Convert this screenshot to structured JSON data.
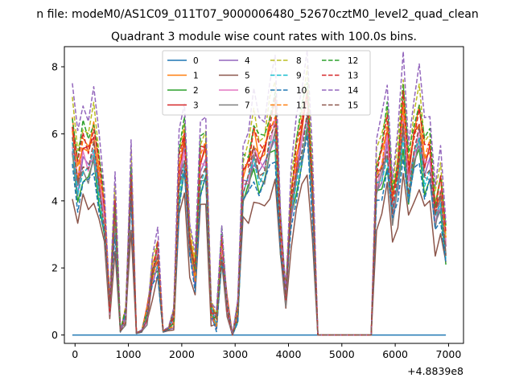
{
  "chart_data": {
    "type": "line",
    "suptitle": "n file: modeM0/AS1C09_011T07_9000006480_52670cztM0_level2_quad_clean",
    "title": "Quadrant 3 module wise count rates with 100.0s bins.",
    "xlabel": "",
    "ylabel": "",
    "offset_text": "+4.8839e8",
    "xlim": [
      -200,
      7280
    ],
    "ylim": [
      -0.25,
      8.6
    ],
    "xticks": [
      0,
      1000,
      2000,
      3000,
      4000,
      5000,
      6000,
      7000
    ],
    "xtick_labels": [
      "0",
      "1000",
      "2000",
      "3000",
      "4000",
      "5000",
      "6000",
      "7000"
    ],
    "yticks": [
      0,
      2,
      4,
      6,
      8
    ],
    "ytick_labels": [
      "0",
      "2",
      "4",
      "6",
      "8"
    ],
    "legend_position": "upper-center",
    "x": [
      -50,
      50,
      150,
      250,
      350,
      450,
      550,
      650,
      750,
      850,
      950,
      1050,
      1150,
      1250,
      1350,
      1450,
      1550,
      1650,
      1750,
      1850,
      1950,
      2050,
      2150,
      2250,
      2350,
      2450,
      2550,
      2650,
      2750,
      2850,
      2950,
      3050,
      3150,
      3250,
      3350,
      3450,
      3550,
      3650,
      3750,
      3850,
      3950,
      4050,
      4150,
      4250,
      4350,
      4450,
      4550,
      5550,
      5650,
      5750,
      5850,
      5950,
      6050,
      6150,
      6250,
      6350,
      6450,
      6550,
      6650,
      6750,
      6850,
      6950
    ],
    "base_profile": [
      1.0,
      0.78,
      0.92,
      0.88,
      0.97,
      0.78,
      0.6,
      0.15,
      0.62,
      0.02,
      0.1,
      0.78,
      0.01,
      0.02,
      0.1,
      0.3,
      0.4,
      0.02,
      0.03,
      0.08,
      0.8,
      0.95,
      0.45,
      0.3,
      0.85,
      0.9,
      0.12,
      0.07,
      0.45,
      0.15,
      0.0,
      0.12,
      0.78,
      0.82,
      0.95,
      0.86,
      0.88,
      1.0,
      1.08,
      0.5,
      0.2,
      0.65,
      0.85,
      1.0,
      1.15,
      0.7,
      0.0,
      0.0,
      0.78,
      0.85,
      1.0,
      0.65,
      0.8,
      1.1,
      0.78,
      0.95,
      1.05,
      0.85,
      0.9,
      0.6,
      0.72,
      0.45
    ],
    "series": [
      {
        "name": "0",
        "color": "#1f77b4",
        "dash": "solid",
        "scale": 0
      },
      {
        "name": "1",
        "color": "#ff7f0e",
        "dash": "solid",
        "scale": 6.3
      },
      {
        "name": "2",
        "color": "#2ca02c",
        "dash": "solid",
        "scale": 5.2
      },
      {
        "name": "3",
        "color": "#d62728",
        "dash": "solid",
        "scale": 6.1
      },
      {
        "name": "4",
        "color": "#9467bd",
        "dash": "solid",
        "scale": 5.6
      },
      {
        "name": "5",
        "color": "#8c564b",
        "dash": "solid",
        "scale": 4.3
      },
      {
        "name": "6",
        "color": "#e377c2",
        "dash": "solid",
        "scale": 5.8
      },
      {
        "name": "7",
        "color": "#7f7f7f",
        "dash": "solid",
        "scale": 5.4
      },
      {
        "name": "8",
        "color": "#bcbd22",
        "dash": "dashed",
        "scale": 6.9
      },
      {
        "name": "9",
        "color": "#17becf",
        "dash": "dashed",
        "scale": 5.5
      },
      {
        "name": "10",
        "color": "#1f77b4",
        "dash": "dashed",
        "scale": 5.0
      },
      {
        "name": "11",
        "color": "#ff7f0e",
        "dash": "dashed",
        "scale": 6.2
      },
      {
        "name": "12",
        "color": "#2ca02c",
        "dash": "dashed",
        "scale": 6.7
      },
      {
        "name": "13",
        "color": "#d62728",
        "dash": "dashed",
        "scale": 6.4
      },
      {
        "name": "14",
        "color": "#9467bd",
        "dash": "dashed",
        "scale": 7.5
      },
      {
        "name": "15",
        "color": "#8c564b",
        "dash": "dashed",
        "scale": 5.7
      }
    ]
  }
}
